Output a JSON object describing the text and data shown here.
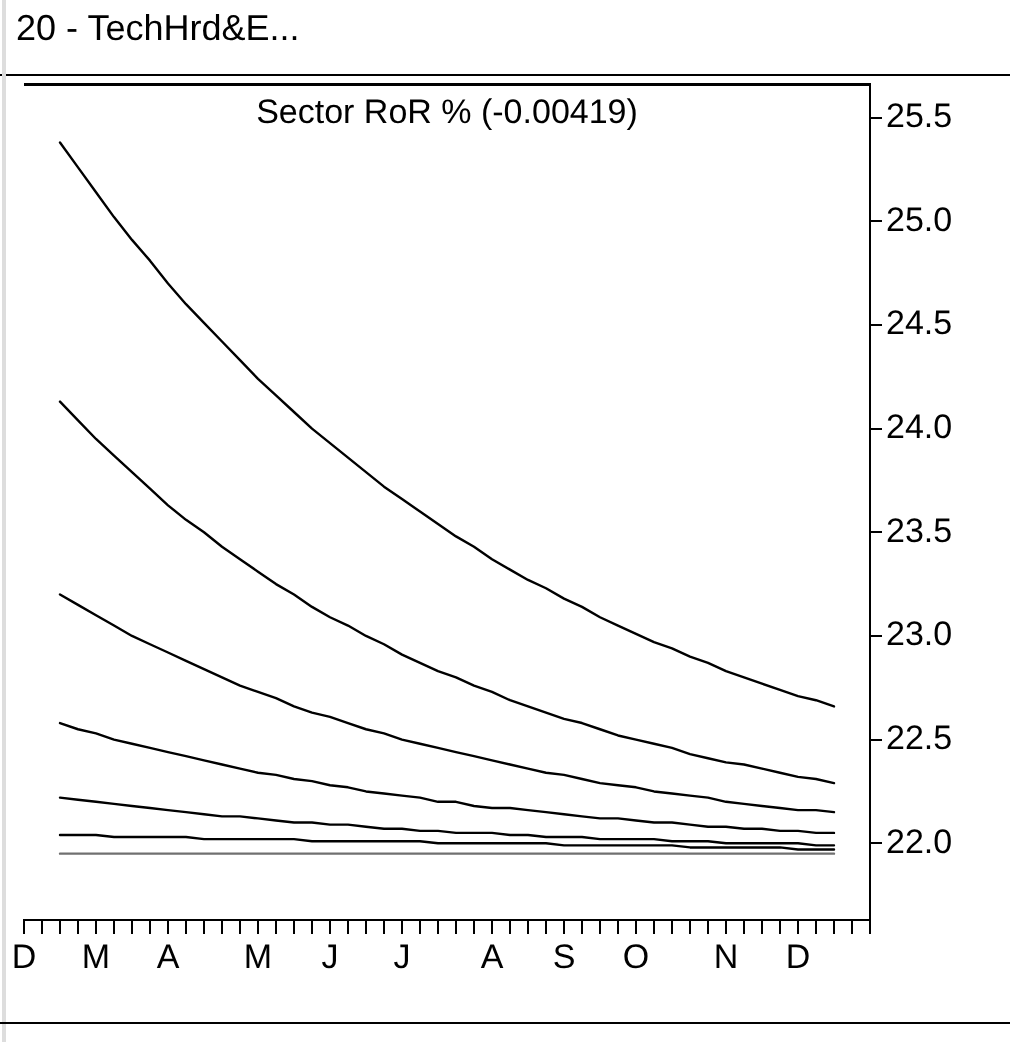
{
  "chart_data": {
    "type": "line",
    "title": "20 - TechHrd&E...",
    "subtitle": "Sector RoR % (-0.00419)",
    "categories": [
      "D",
      null,
      null,
      null,
      "M",
      null,
      null,
      null,
      "A",
      null,
      null,
      null,
      null,
      "M",
      null,
      null,
      null,
      "J",
      null,
      null,
      null,
      "J",
      null,
      null,
      null,
      null,
      "A",
      null,
      null,
      null,
      "S",
      null,
      null,
      null,
      "O",
      null,
      null,
      null,
      null,
      "N",
      null,
      null,
      null,
      "D",
      null,
      null,
      null,
      null
    ],
    "series": [
      {
        "color": "#000000",
        "values": [
          null,
          null,
          25.38,
          25.26,
          25.14,
          25.02,
          24.91,
          24.81,
          24.7,
          24.6,
          24.51,
          24.42,
          24.33,
          24.24,
          24.16,
          24.08,
          24.0,
          23.93,
          23.86,
          23.79,
          23.72,
          23.66,
          23.6,
          23.54,
          23.48,
          23.43,
          23.37,
          23.32,
          23.27,
          23.23,
          23.18,
          23.14,
          23.09,
          23.05,
          23.01,
          22.97,
          22.94,
          22.9,
          22.87,
          22.83,
          22.8,
          22.77,
          22.74,
          22.71,
          22.69,
          22.66,
          null,
          null
        ]
      },
      {
        "color": "#000000",
        "values": [
          null,
          null,
          24.13,
          24.04,
          23.95,
          23.87,
          23.79,
          23.71,
          23.63,
          23.56,
          23.5,
          23.43,
          23.37,
          23.31,
          23.25,
          23.2,
          23.14,
          23.09,
          23.05,
          23.0,
          22.96,
          22.91,
          22.87,
          22.83,
          22.8,
          22.76,
          22.73,
          22.69,
          22.66,
          22.63,
          22.6,
          22.58,
          22.55,
          22.52,
          22.5,
          22.48,
          22.46,
          22.43,
          22.41,
          22.39,
          22.38,
          22.36,
          22.34,
          22.32,
          22.31,
          22.29,
          null,
          null
        ]
      },
      {
        "color": "#000000",
        "values": [
          null,
          null,
          23.2,
          23.15,
          23.1,
          23.05,
          23.0,
          22.96,
          22.92,
          22.88,
          22.84,
          22.8,
          22.76,
          22.73,
          22.7,
          22.66,
          22.63,
          22.61,
          22.58,
          22.55,
          22.53,
          22.5,
          22.48,
          22.46,
          22.44,
          22.42,
          22.4,
          22.38,
          22.36,
          22.34,
          22.33,
          22.31,
          22.29,
          22.28,
          22.27,
          22.25,
          22.24,
          22.23,
          22.22,
          22.2,
          22.19,
          22.18,
          22.17,
          22.16,
          22.16,
          22.15,
          null,
          null
        ]
      },
      {
        "color": "#000000",
        "values": [
          null,
          null,
          22.58,
          22.55,
          22.53,
          22.5,
          22.48,
          22.46,
          22.44,
          22.42,
          22.4,
          22.38,
          22.36,
          22.34,
          22.33,
          22.31,
          22.3,
          22.28,
          22.27,
          22.25,
          22.24,
          22.23,
          22.22,
          22.2,
          22.2,
          22.18,
          22.17,
          22.17,
          22.16,
          22.15,
          22.14,
          22.13,
          22.12,
          22.12,
          22.11,
          22.1,
          22.1,
          22.09,
          22.08,
          22.08,
          22.07,
          22.07,
          22.06,
          22.06,
          22.05,
          22.05,
          null,
          null
        ]
      },
      {
        "color": "#000000",
        "values": [
          null,
          null,
          22.22,
          22.21,
          22.2,
          22.19,
          22.18,
          22.17,
          22.16,
          22.15,
          22.14,
          22.13,
          22.13,
          22.12,
          22.11,
          22.1,
          22.1,
          22.09,
          22.09,
          22.08,
          22.07,
          22.07,
          22.06,
          22.06,
          22.05,
          22.05,
          22.05,
          22.04,
          22.04,
          22.03,
          22.03,
          22.03,
          22.02,
          22.02,
          22.02,
          22.02,
          22.01,
          22.01,
          22.01,
          22.0,
          22.0,
          22.0,
          22.0,
          22.0,
          21.99,
          21.99,
          null,
          null
        ]
      },
      {
        "color": "#000000",
        "values": [
          null,
          null,
          22.04,
          22.04,
          22.04,
          22.03,
          22.03,
          22.03,
          22.03,
          22.03,
          22.02,
          22.02,
          22.02,
          22.02,
          22.02,
          22.02,
          22.01,
          22.01,
          22.01,
          22.01,
          22.01,
          22.01,
          22.01,
          22.0,
          22.0,
          22.0,
          22.0,
          22.0,
          22.0,
          22.0,
          21.99,
          21.99,
          21.99,
          21.99,
          21.99,
          21.99,
          21.99,
          21.98,
          21.98,
          21.98,
          21.98,
          21.98,
          21.98,
          21.97,
          21.97,
          21.97,
          null,
          null
        ]
      },
      {
        "color": "#707070",
        "values": [
          null,
          null,
          21.95,
          21.95,
          21.95,
          21.95,
          21.95,
          21.95,
          21.95,
          21.95,
          21.95,
          21.95,
          21.95,
          21.95,
          21.95,
          21.95,
          21.95,
          21.95,
          21.95,
          21.95,
          21.95,
          21.95,
          21.95,
          21.95,
          21.95,
          21.95,
          21.95,
          21.95,
          21.95,
          21.95,
          21.95,
          21.95,
          21.95,
          21.95,
          21.95,
          21.95,
          21.95,
          21.95,
          21.95,
          21.95,
          21.95,
          21.95,
          21.95,
          21.95,
          21.95,
          21.95,
          null,
          null
        ]
      }
    ],
    "ylim": [
      21.63,
      25.66
    ],
    "yticks": [
      {
        "value": 22,
        "label": "22.0"
      },
      22.5,
      {
        "value": 23,
        "label": "23.0"
      },
      23.5,
      {
        "value": 24,
        "label": "24.0"
      },
      24.5,
      {
        "value": 25,
        "label": "25.0"
      },
      25.5
    ],
    "grid": false,
    "legend": false,
    "marker": "none",
    "line_style": "solid"
  }
}
